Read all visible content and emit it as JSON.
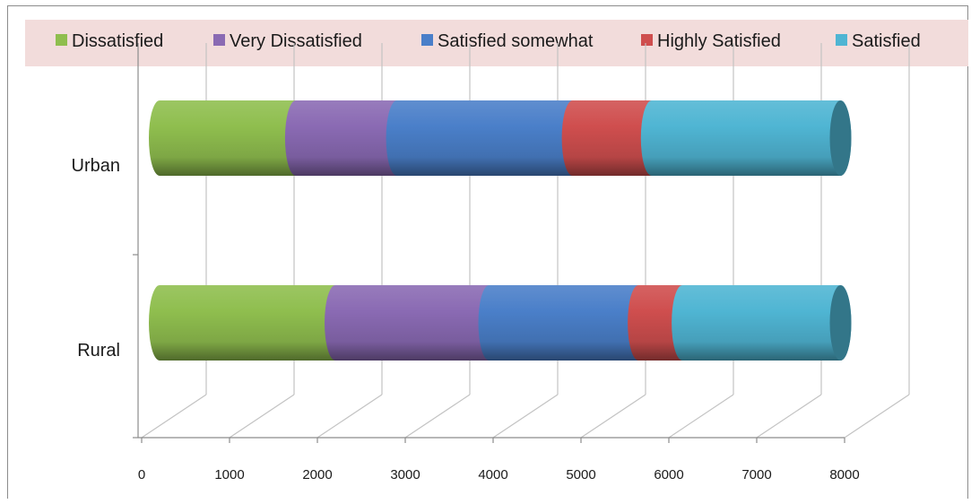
{
  "chart_data": {
    "type": "bar",
    "orientation": "horizontal",
    "stacked": true,
    "style": "3d-cylinder",
    "title": "",
    "xlabel": "",
    "ylabel": "",
    "categories": [
      "Urban",
      "Rural"
    ],
    "xlim": [
      0,
      8000
    ],
    "xticks": [
      0,
      1000,
      2000,
      3000,
      4000,
      5000,
      6000,
      7000,
      8000
    ],
    "grid": "vertical-major",
    "legend": "top",
    "series": [
      {
        "name": "Dissatisfied",
        "color": "#8fbe4e",
        "values": [
          1550,
          2000
        ]
      },
      {
        "name": "Very Dissatisfied",
        "color": "#8a6ab3",
        "values": [
          1150,
          1750
        ]
      },
      {
        "name": "Satisfied somewhat",
        "color": "#4a7fc9",
        "values": [
          2000,
          1700
        ]
      },
      {
        "name": "Highly Satisfied",
        "color": "#cf4e4e",
        "values": [
          900,
          500
        ]
      },
      {
        "name": "Satisfied",
        "color": "#4fb5d3",
        "values": [
          2150,
          1800
        ]
      }
    ]
  }
}
